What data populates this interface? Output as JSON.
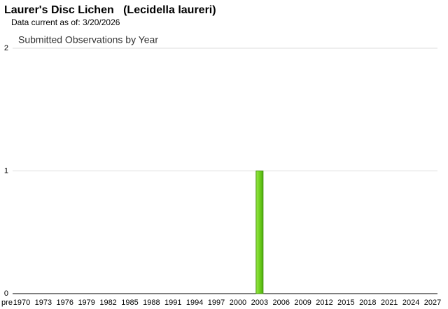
{
  "header": {
    "title": "Laurer's Disc Lichen   (Lecidella laureri)",
    "subtitle": "Data current as of: 3/20/2026"
  },
  "chart_data": {
    "type": "bar",
    "title": "Submitted Observations by Year",
    "categories": [
      "pre",
      "1970",
      "1973",
      "1976",
      "1979",
      "1982",
      "1985",
      "1988",
      "1991",
      "1994",
      "1997",
      "2000",
      "2003",
      "2006",
      "2009",
      "2012",
      "2015",
      "2018",
      "2021",
      "2024",
      "2027"
    ],
    "values": [
      0,
      0,
      0,
      0,
      0,
      0,
      0,
      0,
      0,
      0,
      0,
      0,
      1,
      0,
      0,
      0,
      0,
      0,
      0,
      0,
      0
    ],
    "color": "#6fd11f",
    "ylim": [
      0,
      2
    ],
    "yticks": [
      0,
      1,
      2
    ],
    "grid": true
  }
}
